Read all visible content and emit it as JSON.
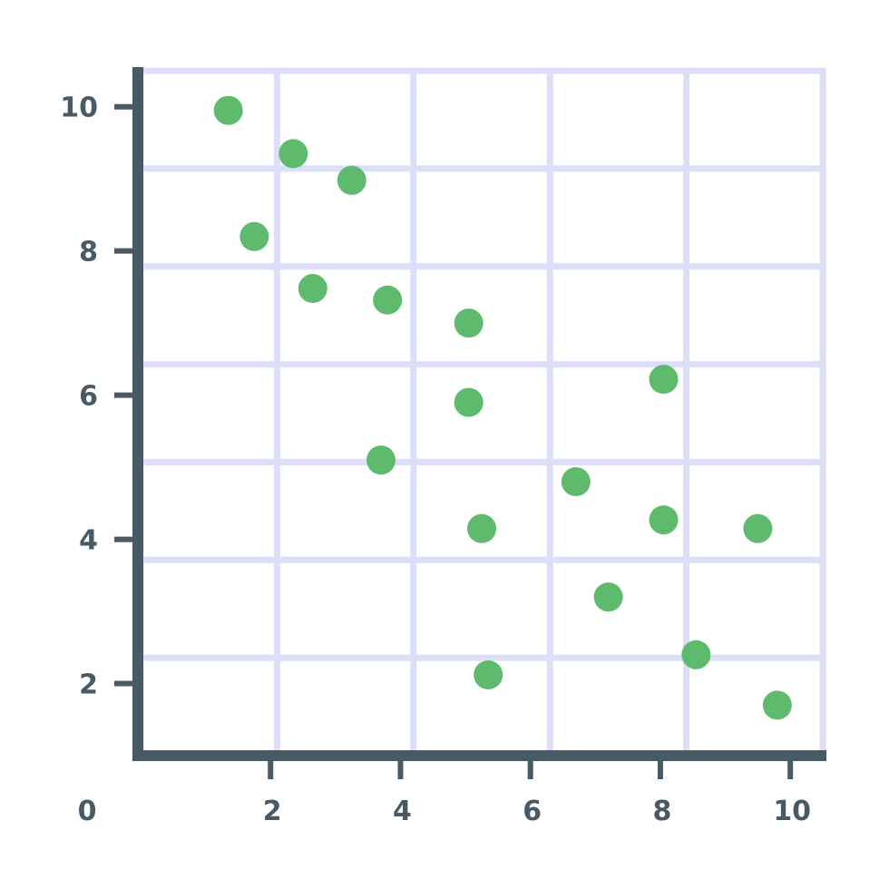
{
  "chart_data": {
    "type": "scatter",
    "title": "",
    "xlabel": "",
    "ylabel": "",
    "xlim": [
      0,
      10.5
    ],
    "ylim": [
      1,
      10.5
    ],
    "xticks": [
      2,
      4,
      6,
      8,
      10
    ],
    "yticks": [
      2,
      4,
      6,
      8,
      10
    ],
    "origin_label": "0",
    "grid": true,
    "points": [
      {
        "x": 1.35,
        "y": 9.95
      },
      {
        "x": 2.35,
        "y": 9.35
      },
      {
        "x": 3.25,
        "y": 8.98
      },
      {
        "x": 1.75,
        "y": 8.2
      },
      {
        "x": 2.65,
        "y": 7.48
      },
      {
        "x": 3.8,
        "y": 7.32
      },
      {
        "x": 5.05,
        "y": 7.0
      },
      {
        "x": 8.05,
        "y": 6.22
      },
      {
        "x": 5.05,
        "y": 5.9
      },
      {
        "x": 3.7,
        "y": 5.1
      },
      {
        "x": 6.7,
        "y": 4.8
      },
      {
        "x": 8.05,
        "y": 4.27
      },
      {
        "x": 5.25,
        "y": 4.15
      },
      {
        "x": 9.5,
        "y": 4.15
      },
      {
        "x": 7.2,
        "y": 3.2
      },
      {
        "x": 8.55,
        "y": 2.4
      },
      {
        "x": 5.35,
        "y": 2.12
      },
      {
        "x": 9.8,
        "y": 1.7
      }
    ]
  },
  "colors": {
    "axis": "#475a66",
    "grid": "#dcdff7",
    "point": "#5ebb6e",
    "label": "#475a66"
  }
}
